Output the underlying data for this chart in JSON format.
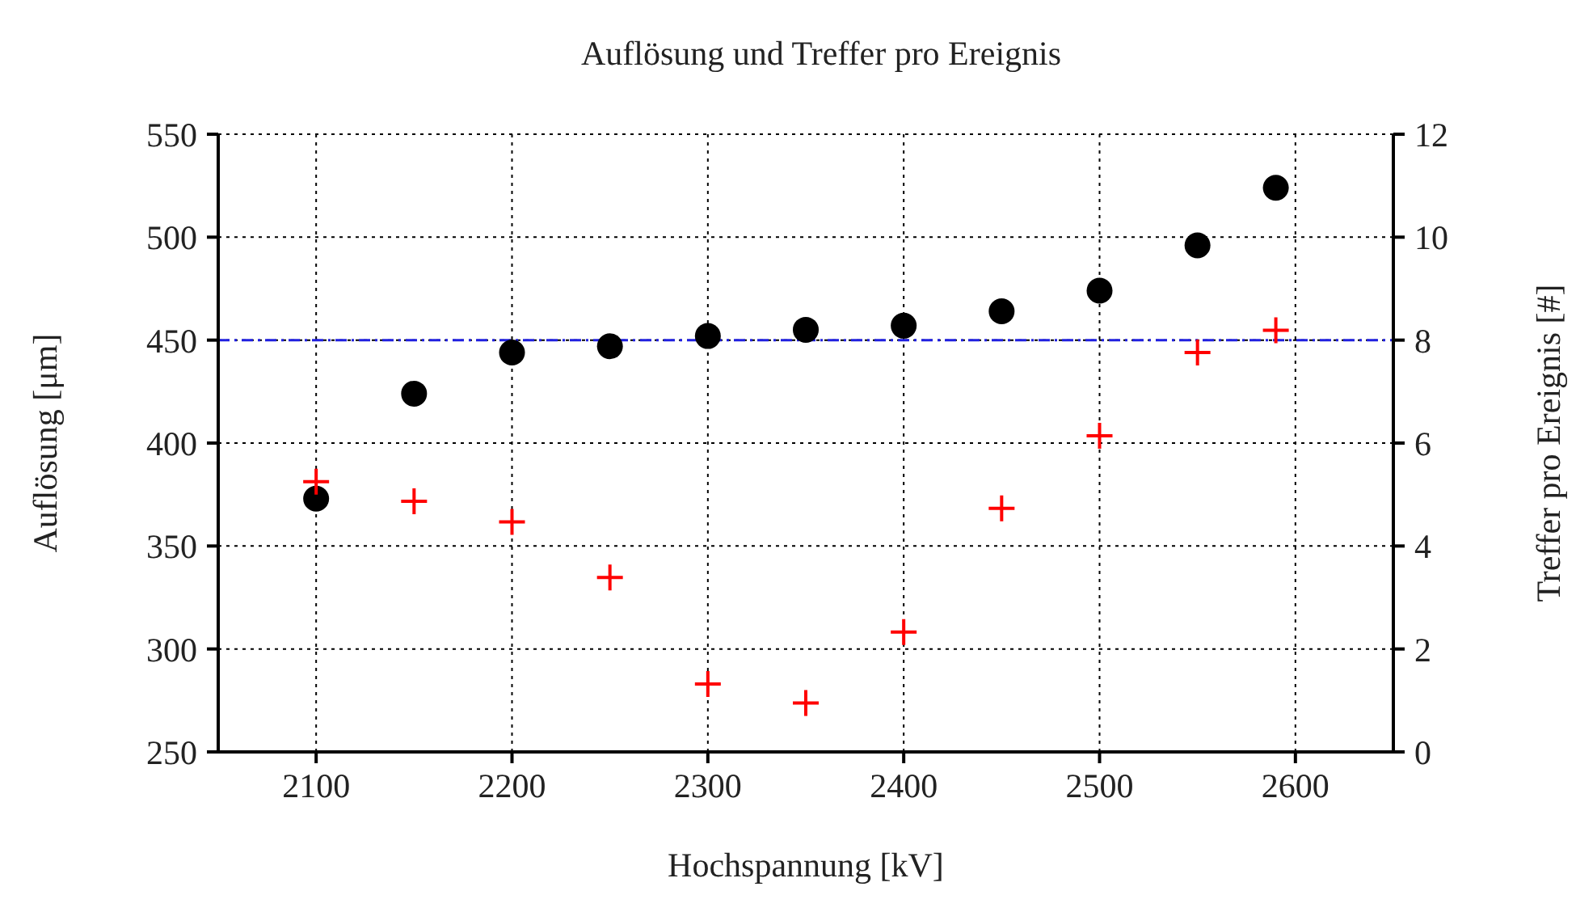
{
  "chart_data": {
    "type": "scatter",
    "title": "Auflösung und Treffer pro Ereignis",
    "xlabel": "Hochspannung [kV]",
    "ylabel": "Auflösung [μm]",
    "y2label": "Treffer pro Ereignis [#]",
    "x": [
      2100,
      2150,
      2200,
      2250,
      2300,
      2350,
      2400,
      2450,
      2500,
      2550,
      2590
    ],
    "series": [
      {
        "color": "#000000",
        "marker": "circle",
        "values": [
          373,
          424,
          444,
          447,
          452,
          455,
          457,
          464,
          474,
          496,
          524
        ]
      },
      {
        "color": "#ff0000",
        "marker": "cross",
        "axis": "y2",
        "values": [
          5.25,
          4.87,
          4.47,
          3.39,
          1.32,
          0.95,
          2.33,
          4.73,
          6.14,
          7.76,
          8.19
        ]
      }
    ],
    "xlim": [
      2050,
      2650
    ],
    "xticks": [
      2100,
      2200,
      2300,
      2400,
      2500,
      2600
    ],
    "ylim": [
      250,
      550
    ],
    "yticks": [
      250,
      300,
      350,
      400,
      450,
      500,
      550
    ],
    "y2lim": [
      0,
      12
    ],
    "y2ticks": [
      0,
      2,
      4,
      6,
      8,
      10,
      12
    ],
    "ref_lines": [
      {
        "axis": "y",
        "value": 450,
        "color": "#2020e0",
        "line_style": "dashed"
      }
    ],
    "grid": true,
    "legend": false
  }
}
